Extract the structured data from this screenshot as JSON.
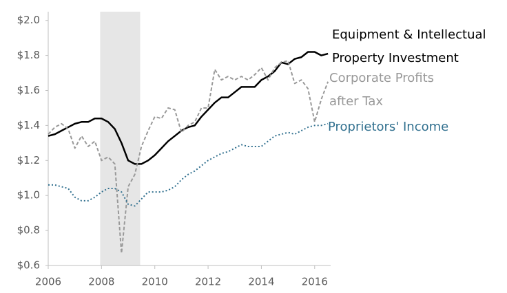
{
  "chart_data": {
    "type": "line",
    "x": [
      2006.0,
      2006.25,
      2006.5,
      2006.75,
      2007.0,
      2007.25,
      2007.5,
      2007.75,
      2008.0,
      2008.25,
      2008.5,
      2008.75,
      2009.0,
      2009.25,
      2009.5,
      2009.75,
      2010.0,
      2010.25,
      2010.5,
      2010.75,
      2011.0,
      2011.25,
      2011.5,
      2011.75,
      2012.0,
      2012.25,
      2012.5,
      2012.75,
      2013.0,
      2013.25,
      2013.5,
      2013.75,
      2014.0,
      2014.25,
      2014.5,
      2014.75,
      2015.0,
      2015.25,
      2015.5,
      2015.75,
      2016.0,
      2016.25,
      2016.5
    ],
    "series": [
      {
        "name": "Equipment & Intellectual Property Investment",
        "color": "#000000",
        "style": "solid",
        "values": [
          1.34,
          1.35,
          1.37,
          1.39,
          1.41,
          1.42,
          1.42,
          1.44,
          1.44,
          1.42,
          1.38,
          1.3,
          1.2,
          1.18,
          1.18,
          1.2,
          1.23,
          1.27,
          1.31,
          1.34,
          1.37,
          1.39,
          1.4,
          1.45,
          1.49,
          1.53,
          1.56,
          1.56,
          1.59,
          1.62,
          1.62,
          1.62,
          1.66,
          1.68,
          1.71,
          1.76,
          1.75,
          1.78,
          1.79,
          1.82,
          1.82,
          1.8,
          1.81
        ]
      },
      {
        "name": "Corporate Profits after Tax",
        "color": "#999999",
        "style": "dashed",
        "values": [
          1.35,
          1.39,
          1.41,
          1.38,
          1.27,
          1.34,
          1.28,
          1.31,
          1.2,
          1.22,
          1.18,
          0.67,
          1.05,
          1.12,
          1.28,
          1.37,
          1.45,
          1.44,
          1.5,
          1.49,
          1.36,
          1.4,
          1.42,
          1.5,
          1.5,
          1.72,
          1.66,
          1.68,
          1.66,
          1.68,
          1.66,
          1.69,
          1.73,
          1.66,
          1.73,
          1.76,
          1.77,
          1.64,
          1.66,
          1.61,
          1.42,
          1.55,
          1.65
        ]
      },
      {
        "name": "Proprietors' Income",
        "color": "#31708f",
        "style": "dotted",
        "values": [
          1.06,
          1.06,
          1.05,
          1.04,
          0.99,
          0.97,
          0.97,
          0.99,
          1.02,
          1.04,
          1.04,
          1.02,
          0.95,
          0.94,
          0.98,
          1.02,
          1.02,
          1.02,
          1.03,
          1.05,
          1.09,
          1.12,
          1.14,
          1.17,
          1.2,
          1.22,
          1.24,
          1.25,
          1.27,
          1.29,
          1.28,
          1.28,
          1.28,
          1.31,
          1.34,
          1.35,
          1.36,
          1.35,
          1.37,
          1.39,
          1.4,
          1.4,
          1.41
        ]
      }
    ],
    "shaded_range": [
      2007.95,
      2009.45
    ],
    "xlim": [
      2006,
      2016.6
    ],
    "xticks": [
      2006,
      2008,
      2010,
      2012,
      2014,
      2016
    ],
    "ylim": [
      0.6,
      2.05
    ],
    "yticks": [
      {
        "value": 0.6,
        "label": "$0.6"
      },
      {
        "value": 0.8,
        "label": "$0.8"
      },
      {
        "value": 1.0,
        "label": "$1.0"
      },
      {
        "value": 1.2,
        "label": "$1.2"
      },
      {
        "value": 1.4,
        "label": "$1.4"
      },
      {
        "value": 1.6,
        "label": "$1.6"
      },
      {
        "value": 1.8,
        "label": "$1.8"
      },
      {
        "value": 2.0,
        "label": "$2.0"
      }
    ]
  }
}
